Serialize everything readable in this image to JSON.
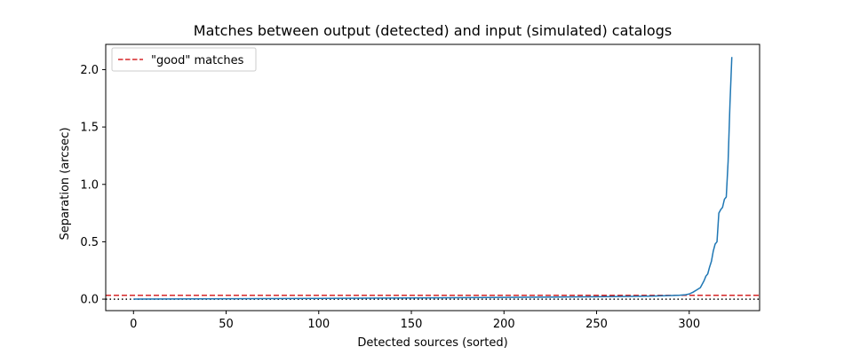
{
  "chart_data": {
    "type": "line",
    "title": "Matches between output (detected) and input (simulated) catalogs",
    "xlabel": "Detected sources (sorted)",
    "ylabel": "Separation (arcsec)",
    "xlim": [
      -15,
      338
    ],
    "ylim": [
      -0.1,
      2.22
    ],
    "xticks": [
      0,
      50,
      100,
      150,
      200,
      250,
      300
    ],
    "xtick_labels": [
      "0",
      "50",
      "100",
      "150",
      "200",
      "250",
      "300"
    ],
    "yticks": [
      0.0,
      0.5,
      1.0,
      1.5,
      2.0
    ],
    "ytick_labels": [
      "0.0",
      "0.5",
      "1.0",
      "1.5",
      "2.0"
    ],
    "grid": false,
    "legend_position": "top-left",
    "series": [
      {
        "name": "",
        "style": "solid",
        "color": "#1f77b4",
        "x": [
          0,
          50,
          100,
          150,
          200,
          250,
          280,
          290,
          295,
          298,
          300,
          302,
          304,
          306,
          307,
          308,
          309,
          310,
          311,
          312,
          313,
          314,
          315,
          316,
          317,
          318,
          319,
          320,
          321,
          322,
          323
        ],
        "y": [
          0.001,
          0.003,
          0.006,
          0.01,
          0.015,
          0.021,
          0.027,
          0.031,
          0.034,
          0.038,
          0.045,
          0.06,
          0.08,
          0.1,
          0.13,
          0.16,
          0.2,
          0.22,
          0.28,
          0.33,
          0.42,
          0.48,
          0.5,
          0.75,
          0.78,
          0.8,
          0.87,
          0.89,
          1.2,
          1.7,
          2.11
        ]
      }
    ],
    "hlines": [
      {
        "name": "\"good\" matches",
        "y": 0.033,
        "style": "dashed",
        "color": "#d62728",
        "in_legend": true
      },
      {
        "name": "",
        "y": 0.0,
        "style": "dotted",
        "color": "#000000",
        "in_legend": false
      }
    ]
  }
}
